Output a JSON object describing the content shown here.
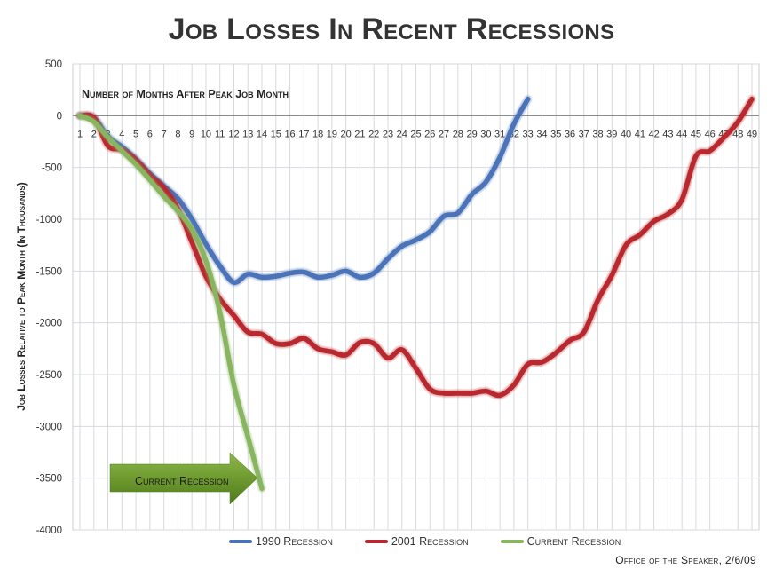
{
  "chart_data": {
    "type": "line",
    "title": "Job Losses In Recent Recessions",
    "xlabel": "Number of Months After Peak Job Month",
    "ylabel": "Job Losses Relative to Peak Month (In Thousands)",
    "ylim": [
      -4000,
      500
    ],
    "yticks": [
      500,
      0,
      -500,
      -1000,
      -1500,
      -2000,
      -2500,
      -3000,
      -3500,
      -4000
    ],
    "xlim": [
      1,
      49
    ],
    "grid": true,
    "legend_position": "bottom",
    "annotation": "Current Recession",
    "source": "Office of the Speaker, 2/6/09",
    "series": [
      {
        "name": "1990 Recession",
        "color": "#4a73b8",
        "x": [
          1,
          2,
          3,
          4,
          5,
          6,
          7,
          8,
          9,
          10,
          11,
          12,
          13,
          14,
          15,
          16,
          17,
          18,
          19,
          20,
          21,
          22,
          23,
          24,
          25,
          26,
          27,
          28,
          29,
          30,
          31,
          32,
          33
        ],
        "values": [
          0,
          -20,
          -200,
          -300,
          -420,
          -560,
          -680,
          -800,
          -1000,
          -1240,
          -1450,
          -1610,
          -1530,
          -1560,
          -1550,
          -1520,
          -1510,
          -1560,
          -1540,
          -1500,
          -1560,
          -1520,
          -1380,
          -1260,
          -1200,
          -1120,
          -970,
          -940,
          -760,
          -640,
          -400,
          -80,
          160
        ]
      },
      {
        "name": "2001 Recession",
        "color": "#b8282e",
        "x": [
          1,
          2,
          3,
          4,
          5,
          6,
          7,
          8,
          9,
          10,
          11,
          12,
          13,
          14,
          15,
          16,
          17,
          18,
          19,
          20,
          21,
          22,
          23,
          24,
          25,
          26,
          27,
          28,
          29,
          30,
          31,
          32,
          33,
          34,
          35,
          36,
          37,
          38,
          39,
          40,
          41,
          42,
          43,
          44,
          45,
          46,
          47,
          48,
          49
        ],
        "values": [
          0,
          -20,
          -290,
          -330,
          -430,
          -580,
          -700,
          -900,
          -1220,
          -1550,
          -1770,
          -1930,
          -2090,
          -2110,
          -2200,
          -2200,
          -2150,
          -2250,
          -2280,
          -2310,
          -2190,
          -2200,
          -2340,
          -2260,
          -2440,
          -2640,
          -2680,
          -2680,
          -2680,
          -2660,
          -2700,
          -2600,
          -2400,
          -2380,
          -2290,
          -2170,
          -2090,
          -1780,
          -1540,
          -1250,
          -1150,
          -1020,
          -950,
          -810,
          -390,
          -340,
          -210,
          -60,
          160
        ]
      },
      {
        "name": "Current Recession",
        "color": "#8ab560",
        "x": [
          1,
          2,
          3,
          4,
          5,
          6,
          7,
          8,
          9,
          10,
          11,
          12,
          13,
          14
        ],
        "values": [
          0,
          -60,
          -210,
          -340,
          -470,
          -620,
          -780,
          -920,
          -1100,
          -1400,
          -1900,
          -2600,
          -3100,
          -3600
        ]
      }
    ]
  }
}
